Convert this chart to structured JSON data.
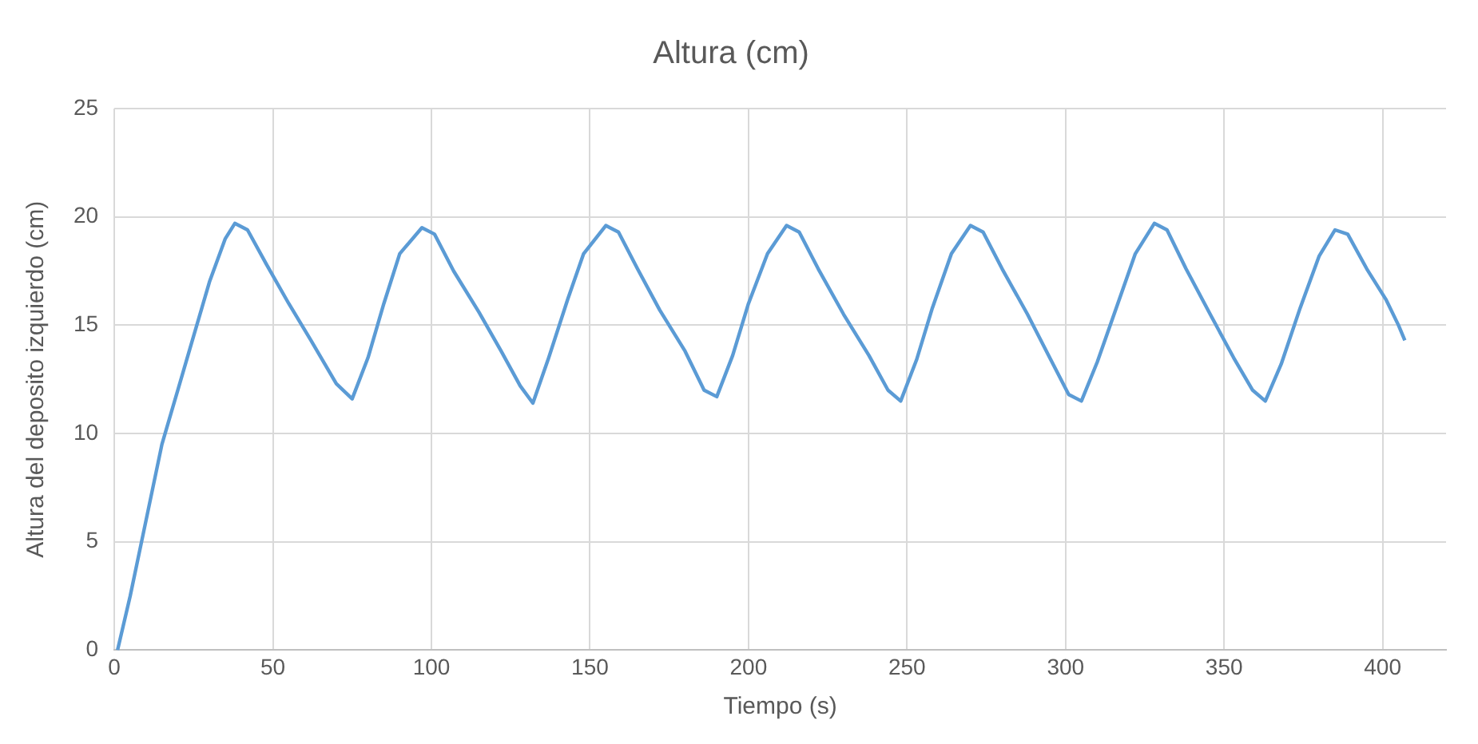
{
  "chart_data": {
    "type": "line",
    "title": "Altura (cm)",
    "xlabel": "Tiempo (s)",
    "ylabel": "Altura del deposito izquierdo (cm)",
    "x": [
      1,
      5,
      10,
      15,
      20,
      25,
      30,
      35,
      38,
      42,
      48,
      55,
      62,
      70,
      75,
      80,
      85,
      90,
      97,
      101,
      107,
      115,
      122,
      128,
      132,
      137,
      143,
      148,
      155,
      159,
      165,
      172,
      180,
      186,
      190,
      195,
      200,
      206,
      212,
      216,
      222,
      230,
      238,
      244,
      248,
      253,
      258,
      264,
      270,
      274,
      280,
      288,
      295,
      301,
      305,
      310,
      316,
      322,
      328,
      332,
      338,
      346,
      353,
      359,
      363,
      368,
      374,
      380,
      385,
      389,
      395,
      401,
      405,
      407
    ],
    "series": [
      {
        "color": "#5b9bd5",
        "values": [
          0,
          2.5,
          6,
          9.5,
          12,
          14.5,
          17,
          19,
          19.7,
          19.4,
          17.8,
          16,
          14.3,
          12.3,
          11.6,
          13.5,
          16,
          18.3,
          19.5,
          19.2,
          17.5,
          15.6,
          13.8,
          12.2,
          11.4,
          13.5,
          16.2,
          18.3,
          19.6,
          19.3,
          17.6,
          15.7,
          13.8,
          12,
          11.7,
          13.6,
          16,
          18.3,
          19.6,
          19.3,
          17.6,
          15.5,
          13.6,
          12,
          11.5,
          13.4,
          15.8,
          18.3,
          19.6,
          19.3,
          17.6,
          15.5,
          13.5,
          11.8,
          11.5,
          13.3,
          15.8,
          18.3,
          19.7,
          19.4,
          17.6,
          15.4,
          13.5,
          12,
          11.5,
          13.2,
          15.8,
          18.2,
          19.4,
          19.2,
          17.6,
          16.2,
          15,
          14.3
        ]
      }
    ],
    "xlim": [
      0,
      420
    ],
    "xticks": [
      0,
      50,
      100,
      150,
      200,
      250,
      300,
      350,
      400
    ],
    "ylim": [
      0,
      25
    ],
    "yticks": [
      0,
      5,
      10,
      15,
      20,
      25
    ],
    "grid": true,
    "legend": false,
    "marker": "none",
    "line_style": "solid"
  }
}
